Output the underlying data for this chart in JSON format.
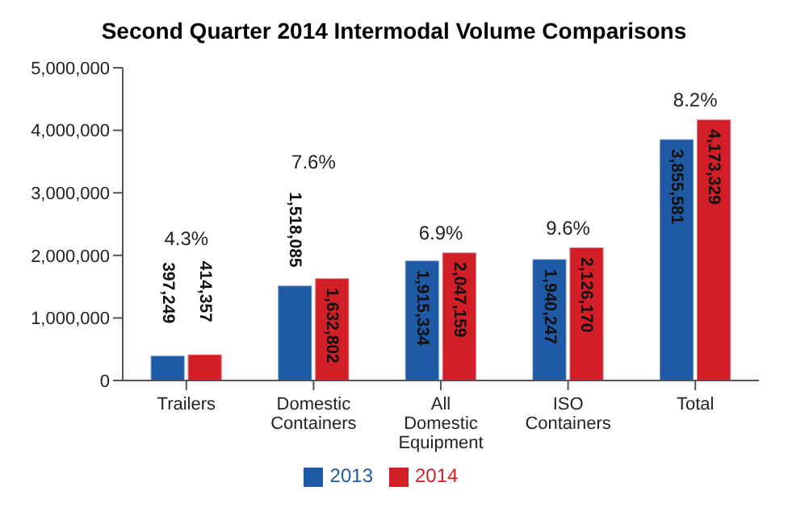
{
  "chart_data": {
    "type": "bar",
    "title": "Second Quarter 2014 Intermodal Volume Comparisons",
    "categories": [
      "Trailers",
      "Domestic Containers",
      "All Domestic Equipment",
      "ISO Containers",
      "Total"
    ],
    "series": [
      {
        "name": "2013",
        "color": "#1e5aa6",
        "values": [
          397249,
          1518085,
          1915334,
          1940247,
          3855581
        ],
        "value_labels": [
          "397,249",
          "1,518,085",
          "1,915,334",
          "1,940,247",
          "3,855,581"
        ]
      },
      {
        "name": "2014",
        "color": "#d21f27",
        "values": [
          414357,
          1632802,
          2047159,
          2126170,
          4173329
        ],
        "value_labels": [
          "414,357",
          "1,632,802",
          "2,047,159",
          "2,126,170",
          "4,173,329"
        ]
      }
    ],
    "ylim": [
      0,
      5000000
    ],
    "yticks": [
      {
        "value": 0,
        "label": "0"
      },
      {
        "value": 1000000,
        "label": "1,000,000"
      },
      {
        "value": 2000000,
        "label": "2,000,000"
      },
      {
        "value": 3000000,
        "label": "3,000,000"
      },
      {
        "value": 4000000,
        "label": "4,000,000"
      },
      {
        "value": 5000000,
        "label": "5,000,000"
      }
    ],
    "grid": false,
    "legend": "bottom",
    "annotations": [
      "4.3%",
      "7.6%",
      "6.9%",
      "9.6%",
      "8.2%"
    ]
  }
}
